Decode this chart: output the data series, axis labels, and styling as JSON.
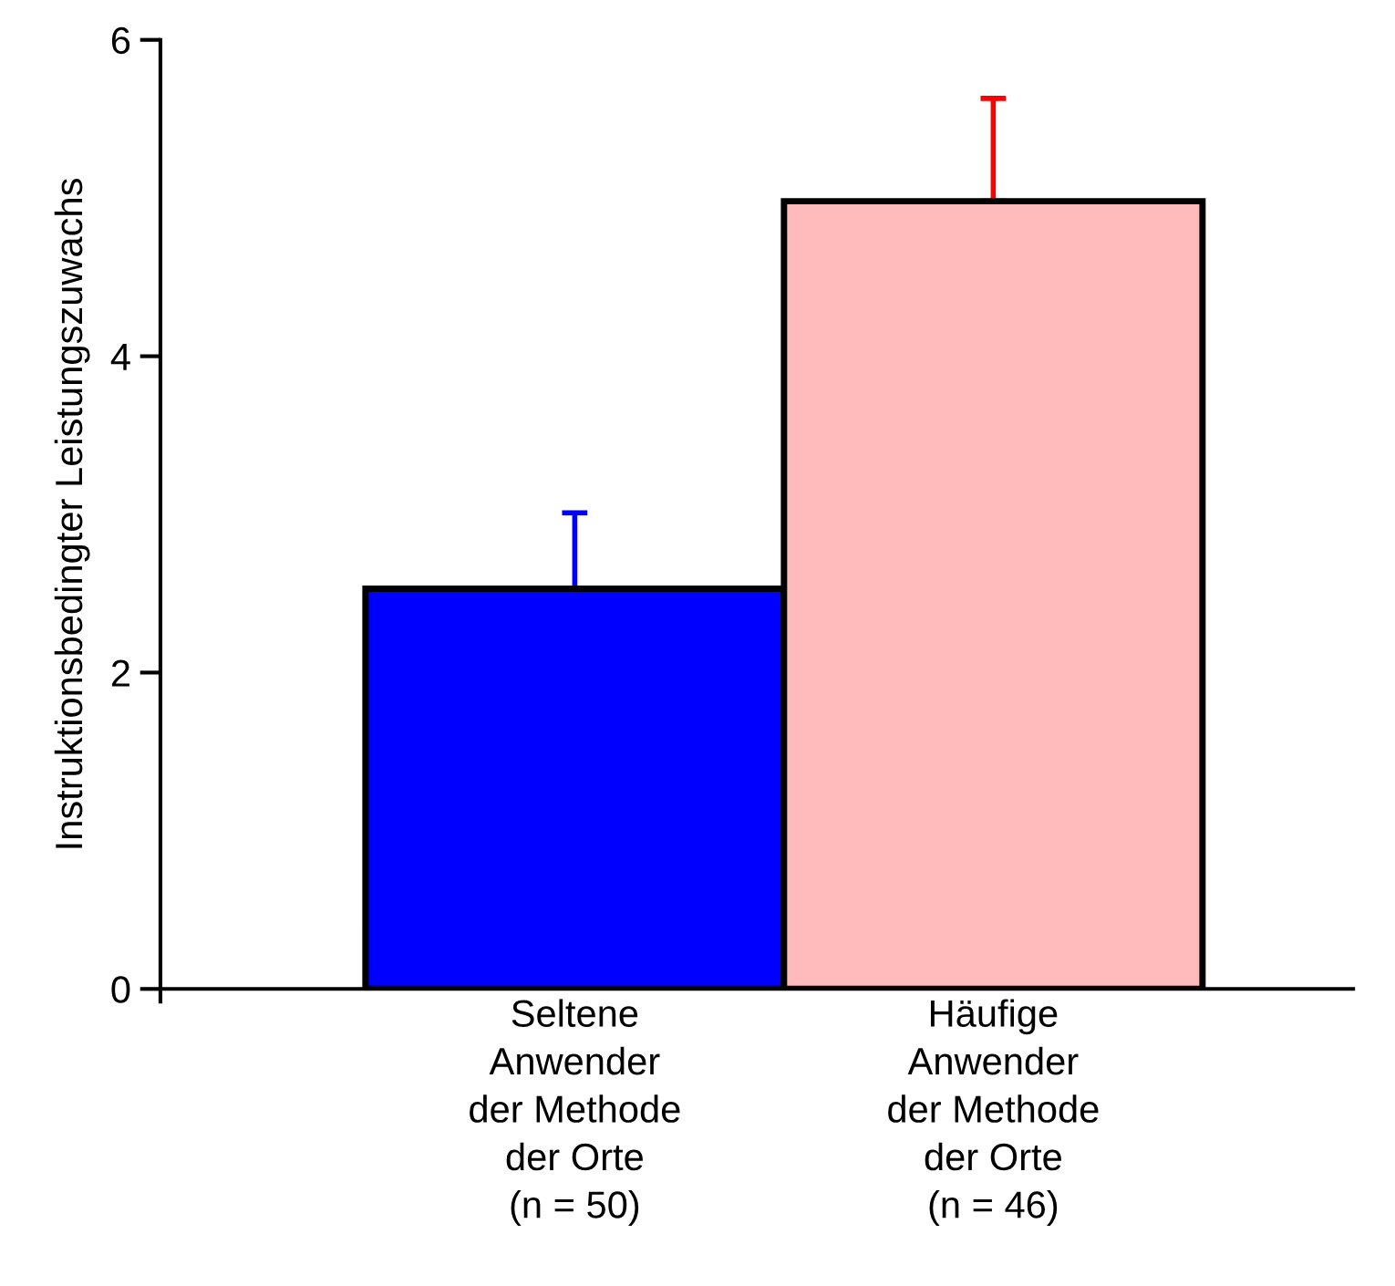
{
  "chart_data": {
    "type": "bar",
    "ylabel": "Instruktionsbedingter Leistungszuwachs",
    "categories": [
      "Seltene\nAnwender\nder Methode\nder Orte\n(n = 50)",
      "Häufige\nAnwender\nder Methode\nder Orte\n(n = 46)"
    ],
    "values": [
      2.53,
      4.98
    ],
    "colors": [
      "#0000ff",
      "#ffbbbb"
    ],
    "errors": [
      [
        2.53,
        3.01
      ],
      [
        4.98,
        5.63
      ]
    ],
    "ylim": [
      0,
      6
    ],
    "yticks": [
      0,
      2,
      4,
      6
    ],
    "grid": false,
    "legend": false
  }
}
